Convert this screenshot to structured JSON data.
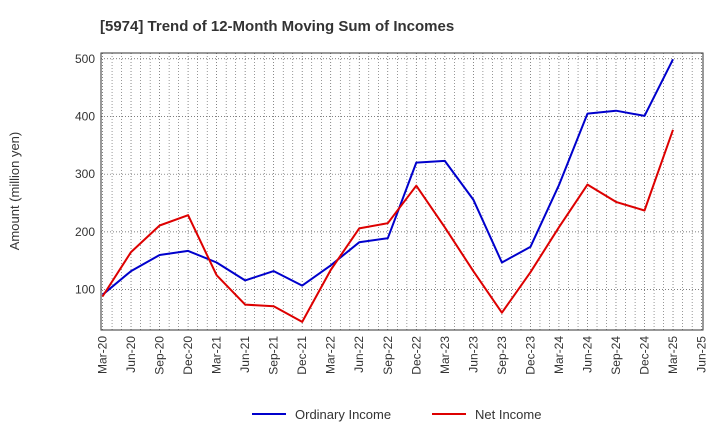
{
  "chart_data": {
    "type": "line",
    "title": "[5974]  Trend of 12-Month Moving Sum of Incomes",
    "xlabel": "",
    "ylabel": "Amount (million yen)",
    "ylim": [
      30,
      510
    ],
    "yticks": [
      100,
      200,
      300,
      400,
      500
    ],
    "grid": true,
    "legend_position": "bottom",
    "categories": [
      "Mar-20",
      "Jun-20",
      "Sep-20",
      "Dec-20",
      "Mar-21",
      "Jun-21",
      "Sep-21",
      "Dec-21",
      "Mar-22",
      "Jun-22",
      "Sep-22",
      "Dec-22",
      "Mar-23",
      "Jun-23",
      "Sep-23",
      "Dec-23",
      "Mar-24",
      "Jun-24",
      "Sep-24",
      "Dec-24",
      "Mar-25",
      "Jun-25"
    ],
    "series": [
      {
        "name": "Ordinary Income",
        "color": "#0000cc",
        "values": [
          91,
          132,
          160,
          167,
          147,
          116,
          132,
          107,
          142,
          182,
          189,
          320,
          323,
          256,
          147,
          174,
          281,
          405,
          410,
          401,
          499,
          null
        ]
      },
      {
        "name": "Net Income",
        "color": "#dd0000",
        "values": [
          88,
          165,
          211,
          229,
          125,
          74,
          71,
          44,
          134,
          206,
          215,
          280,
          208,
          132,
          60,
          130,
          208,
          282,
          252,
          237,
          377,
          null
        ]
      }
    ]
  }
}
